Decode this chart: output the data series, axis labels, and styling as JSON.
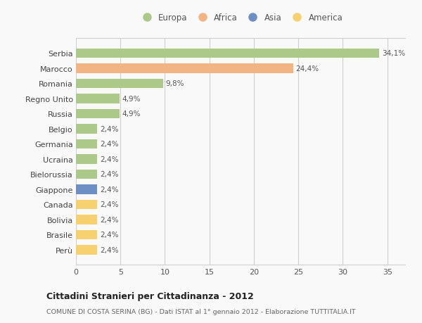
{
  "countries": [
    "Serbia",
    "Marocco",
    "Romania",
    "Regno Unito",
    "Russia",
    "Belgio",
    "Germania",
    "Ucraina",
    "Bielorussia",
    "Giappone",
    "Canada",
    "Bolivia",
    "Brasile",
    "Perù"
  ],
  "values": [
    34.1,
    24.4,
    9.8,
    4.9,
    4.9,
    2.4,
    2.4,
    2.4,
    2.4,
    2.4,
    2.4,
    2.4,
    2.4,
    2.4
  ],
  "labels": [
    "34,1%",
    "24,4%",
    "9,8%",
    "4,9%",
    "4,9%",
    "2,4%",
    "2,4%",
    "2,4%",
    "2,4%",
    "2,4%",
    "2,4%",
    "2,4%",
    "2,4%",
    "2,4%"
  ],
  "colors": [
    "#adc98a",
    "#f2b482",
    "#adc98a",
    "#adc98a",
    "#adc98a",
    "#adc98a",
    "#adc98a",
    "#adc98a",
    "#adc98a",
    "#6e8fc4",
    "#f7d070",
    "#f7d070",
    "#f7d070",
    "#f7d070"
  ],
  "legend_labels": [
    "Europa",
    "Africa",
    "Asia",
    "America"
  ],
  "legend_colors": [
    "#adc98a",
    "#f2b482",
    "#6e8fc4",
    "#f7d070"
  ],
  "xlim": [
    0,
    37
  ],
  "xticks": [
    0,
    5,
    10,
    15,
    20,
    25,
    30,
    35
  ],
  "title": "Cittadini Stranieri per Cittadinanza - 2012",
  "subtitle": "COMUNE DI COSTA SERINA (BG) - Dati ISTAT al 1° gennaio 2012 - Elaborazione TUTTITALIA.IT",
  "bg_color": "#f9f9f9",
  "grid_color": "#d0d0d0"
}
